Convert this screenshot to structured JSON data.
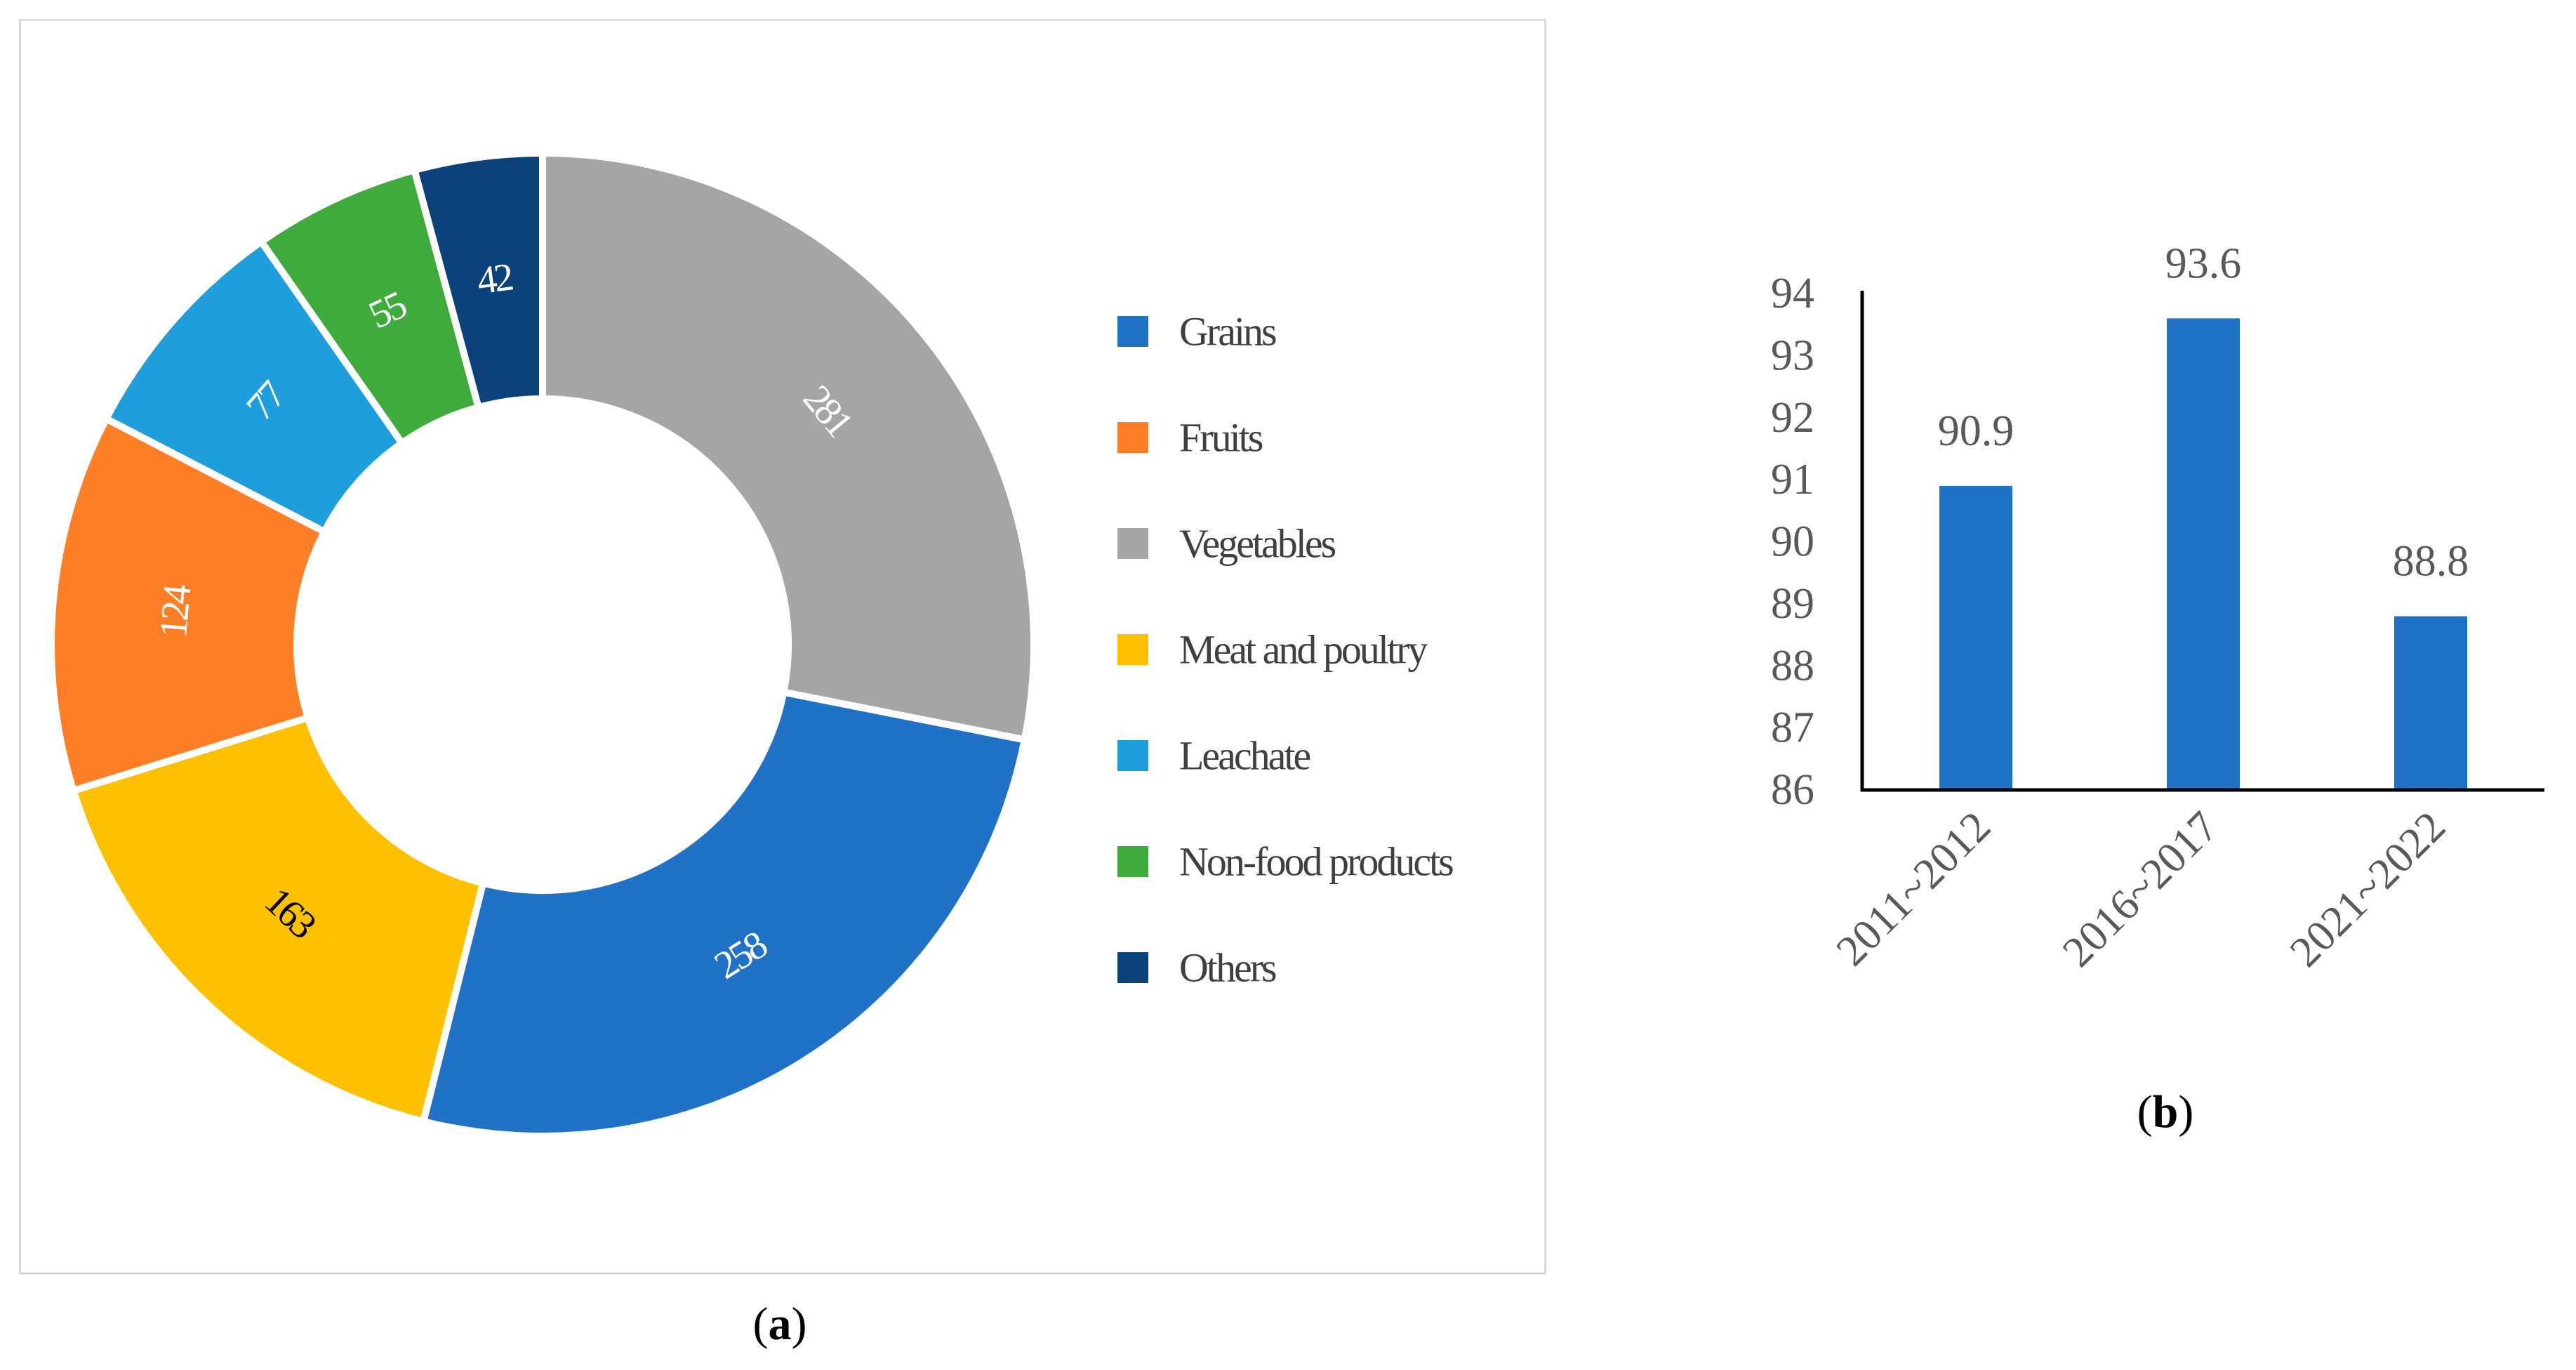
{
  "chart_data": [
    {
      "type": "pie",
      "style": "donut",
      "panel_label": "a",
      "slices": [
        {
          "label": "Vegetables",
          "value": 281,
          "display": "281",
          "color": "#a5a5a5",
          "text_color": "#ffffff"
        },
        {
          "label": "Grains",
          "value": 258,
          "display": "258",
          "color": "#1f72c6",
          "text_color": "#ffffff"
        },
        {
          "label": "Meat and poultry",
          "value": 163,
          "display": "163",
          "color": "#ffc000",
          "text_color": "#000000"
        },
        {
          "label": "Fruits",
          "value": 124,
          "display": "124",
          "color": "#fe7f26",
          "text_color": "#ffffff"
        },
        {
          "label": "Leachate",
          "value": 77,
          "display": "77",
          "color": "#1e9fdc",
          "text_color": "#ffffff"
        },
        {
          "label": "Non-food products",
          "value": 55,
          "display": "55",
          "color": "#3eab3b",
          "text_color": "#ffffff"
        },
        {
          "label": "Others",
          "value": 42,
          "display": "42",
          "color": "#0b4279",
          "text_color": "#ffffff"
        }
      ],
      "legend": {
        "placement": "right",
        "entries": [
          {
            "label": "Grains",
            "color": "#1f72c6"
          },
          {
            "label": "Fruits",
            "color": "#fe7f26"
          },
          {
            "label": "Vegetables",
            "color": "#a5a5a5"
          },
          {
            "label": "Meat and poultry",
            "color": "#ffc000"
          },
          {
            "label": "Leachate",
            "color": "#1e9fdc"
          },
          {
            "label": "Non-food products",
            "color": "#3eab3b"
          },
          {
            "label": "Others",
            "color": "#0b4279"
          }
        ]
      }
    },
    {
      "type": "bar",
      "panel_label": "b",
      "categories": [
        "2011~2012",
        "2016~2017",
        "2021~2022"
      ],
      "values": [
        90.9,
        93.6,
        88.8
      ],
      "value_labels": [
        "90.9",
        "93.6",
        "88.8"
      ],
      "ylim": [
        86,
        94
      ],
      "yticks": [
        "86",
        "87",
        "88",
        "89",
        "90",
        "91",
        "92",
        "93",
        "94"
      ],
      "bar_color": "#1f72c6",
      "xlabel": "",
      "ylabel": "",
      "title": ""
    }
  ]
}
